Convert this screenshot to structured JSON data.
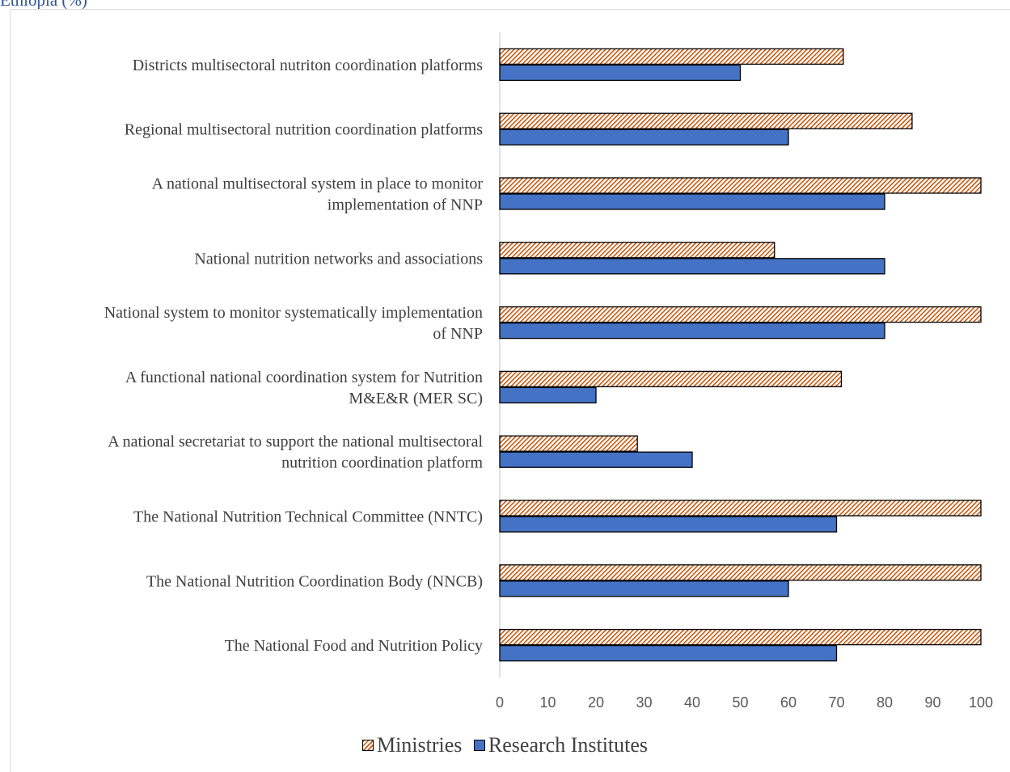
{
  "caption_fragment": "Ethiopia (%)",
  "legend": {
    "ministries_label": "Ministries",
    "research_label": "Research Institutes"
  },
  "colors": {
    "ministries_hatch": "#c55a11",
    "research_fill": "#4472c4",
    "axis_line": "#d9d9d9",
    "label_text": "#404040",
    "tick_text": "#595959"
  },
  "chart_data": {
    "type": "bar",
    "orientation": "horizontal",
    "categories": [
      [
        "Districts multisectoral nutriton coordination platforms"
      ],
      [
        "Regional multisectoral nutrition coordination platforms"
      ],
      [
        "A national multisectoral  system in place to monitor",
        "implementation of NNP"
      ],
      [
        "National nutrition networks and associations"
      ],
      [
        "National system to monitor systematically implementation",
        "of NNP"
      ],
      [
        "A functional national coordination system for Nutrition",
        "M&E&R (MER SC)"
      ],
      [
        "A national secretariat to support the national multisectoral",
        "nutrition coordination platform"
      ],
      [
        "The National Nutrition Technical Committee (NNTC)"
      ],
      [
        "The National Nutrition Coordination Body (NNCB)"
      ],
      [
        "The National Food and Nutrition Policy"
      ]
    ],
    "series": [
      {
        "name": "Ministries",
        "pattern": "diagonal-hatch",
        "values": [
          71.4,
          85.7,
          100,
          57.1,
          100,
          71,
          28.6,
          100,
          100,
          100
        ]
      },
      {
        "name": "Research Institutes",
        "pattern": "solid",
        "values": [
          50,
          60,
          80,
          80,
          80,
          20,
          40,
          70,
          60,
          70
        ]
      }
    ],
    "xlim": [
      0,
      100
    ],
    "xticks": [
      0,
      10,
      20,
      30,
      40,
      50,
      60,
      70,
      80,
      90,
      100
    ],
    "grid": false,
    "legend_position": "bottom"
  }
}
